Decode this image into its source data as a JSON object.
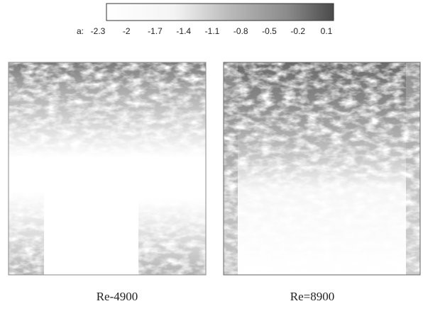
{
  "colorbar": {
    "label": "a:",
    "ticks": [
      -2.3,
      -2,
      -1.7,
      -1.4,
      -1.1,
      -0.8,
      -0.5,
      -0.2,
      0.1
    ]
  },
  "panels": [
    {
      "caption": "Re-4900"
    },
    {
      "caption": "Re=8900"
    }
  ]
}
